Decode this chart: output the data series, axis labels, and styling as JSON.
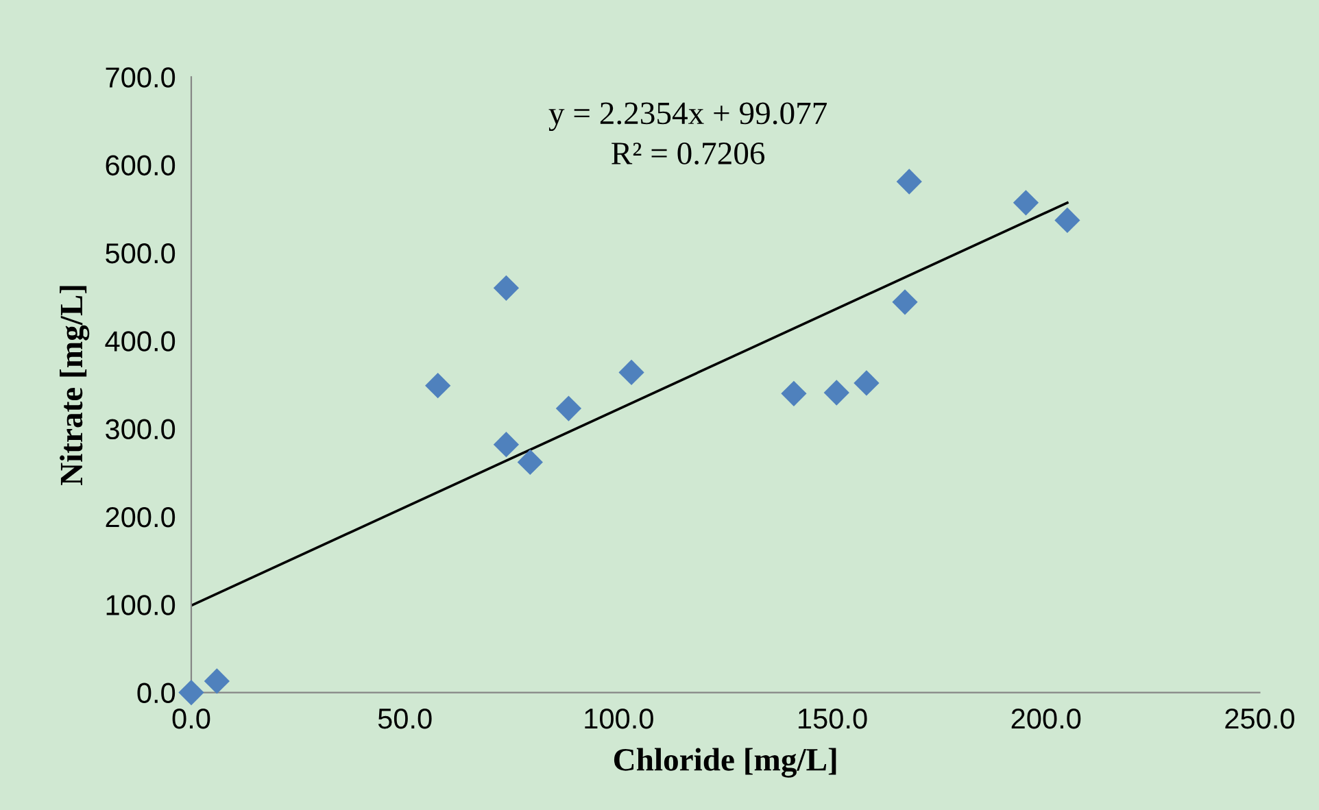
{
  "chart_data": {
    "type": "scatter",
    "xlabel": "Chloride [mg/L]",
    "ylabel": "Nitrate [mg/L]",
    "annotations": [
      "y = 2.2354x + 99.077",
      "R² = 0.7206"
    ],
    "series": [
      {
        "color": "#4f81bd",
        "marker": "diamond",
        "x": [
          0,
          6,
          57.7,
          73.7,
          73.7,
          79.3,
          88.3,
          103,
          141,
          151,
          158,
          167,
          168,
          195.3,
          205
        ],
        "values": [
          0,
          13,
          349,
          460,
          282,
          262,
          323,
          364,
          340,
          341,
          352,
          444,
          581,
          557,
          537
        ]
      },
      {
        "type": "line",
        "color": "#000000",
        "x": [
          0,
          205
        ],
        "values": [
          99,
          557
        ]
      }
    ],
    "xlim": [
      0,
      250
    ],
    "ylim": [
      0,
      700
    ],
    "xticks": [
      {
        "value": 0,
        "label": "0.0"
      },
      {
        "value": 50,
        "label": "50.0"
      },
      {
        "value": 100,
        "label": "100.0"
      },
      {
        "value": 150,
        "label": "150.0"
      },
      {
        "value": 200,
        "label": "200.0"
      },
      {
        "value": 250,
        "label": "250.0"
      }
    ],
    "yticks": [
      {
        "value": 0,
        "label": "0.0"
      },
      {
        "value": 100,
        "label": "100.0"
      },
      {
        "value": 200,
        "label": "200.0"
      },
      {
        "value": 300,
        "label": "300.0"
      },
      {
        "value": 400,
        "label": "400.0"
      },
      {
        "value": 500,
        "label": "500.0"
      },
      {
        "value": 600,
        "label": "600.0"
      },
      {
        "value": 700,
        "label": "700.0"
      }
    ],
    "grid": false,
    "legend": false
  }
}
